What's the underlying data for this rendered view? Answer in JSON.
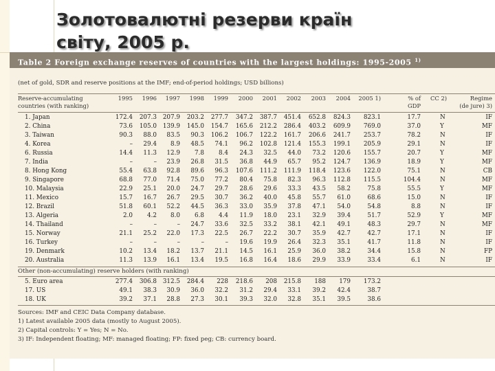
{
  "slide": {
    "title_line1": "Золотовалютні резерви країн",
    "title_line2": "світу, 2005 р."
  },
  "table": {
    "caption": "Table 2 Foreign exchange reserves of countries with the largest holdings: 1995-2005",
    "caption_note": "1)",
    "subtitle": "(net of gold, SDR and reserve positions at the IMF; end-of-period holdings; USD billions)",
    "row_header_line1": "Reserve-accumulating",
    "row_header_line2": "countries (with ranking)",
    "years": [
      "1995",
      "1996",
      "1997",
      "1998",
      "1999",
      "2000",
      "2001",
      "2002",
      "2003",
      "2004",
      "2005 1)"
    ],
    "pct_header_line1": "% of",
    "pct_header_line2": "GDP",
    "cc_header": "CC 2)",
    "regime_header_line1": "Regime",
    "regime_header_line2": "(de jure) 3)",
    "rows": [
      {
        "name": "1. Japan",
        "v": [
          "172.4",
          "207.3",
          "207.9",
          "203.2",
          "277.7",
          "347.2",
          "387.7",
          "451.4",
          "652.8",
          "824.3",
          "823.1"
        ],
        "pct": "17.7",
        "cc": "N",
        "regime": "IF"
      },
      {
        "name": "2. China",
        "v": [
          "73.6",
          "105.0",
          "139.9",
          "145.0",
          "154.7",
          "165.6",
          "212.2",
          "286.4",
          "403.2",
          "609.9",
          "769.0"
        ],
        "pct": "37.0",
        "cc": "Y",
        "regime": "MF"
      },
      {
        "name": "3. Taiwan",
        "v": [
          "90.3",
          "88.0",
          "83.5",
          "90.3",
          "106.2",
          "106.7",
          "122.2",
          "161.7",
          "206.6",
          "241.7",
          "253.7"
        ],
        "pct": "78.2",
        "cc": "N",
        "regime": "IF"
      },
      {
        "name": "4. Korea",
        "v": [
          "–",
          "29.4",
          "8.9",
          "48.5",
          "74.1",
          "96.2",
          "102.8",
          "121.4",
          "155.3",
          "199.1",
          "205.9"
        ],
        "pct": "29.1",
        "cc": "N",
        "regime": "IF"
      },
      {
        "name": "6. Russia",
        "v": [
          "14.4",
          "11.3",
          "12.9",
          "7.8",
          "8.4",
          "24.3",
          "32.5",
          "44.0",
          "73.2",
          "120.6",
          "155.7"
        ],
        "pct": "20.7",
        "cc": "Y",
        "regime": "MF"
      },
      {
        "name": "7. India",
        "v": [
          "–",
          "–",
          "23.9",
          "26.8",
          "31.5",
          "36.8",
          "44.9",
          "65.7",
          "95.2",
          "124.7",
          "136.9"
        ],
        "pct": "18.9",
        "cc": "Y",
        "regime": "MF"
      },
      {
        "name": "8. Hong Kong",
        "v": [
          "55.4",
          "63.8",
          "92.8",
          "89.6",
          "96.3",
          "107.6",
          "111.2",
          "111.9",
          "118.4",
          "123.6",
          "122.0"
        ],
        "pct": "75.1",
        "cc": "N",
        "regime": "CB"
      },
      {
        "name": "9. Singapore",
        "v": [
          "68.8",
          "77.0",
          "71.4",
          "75.0",
          "77.2",
          "80.4",
          "75.8",
          "82.3",
          "96.3",
          "112.8",
          "115.5"
        ],
        "pct": "104.4",
        "cc": "N",
        "regime": "MF"
      },
      {
        "name": "10. Malaysia",
        "v": [
          "22.9",
          "25.1",
          "20.0",
          "24.7",
          "29.7",
          "28.6",
          "29.6",
          "33.3",
          "43.5",
          "58.2",
          "75.8"
        ],
        "pct": "55.5",
        "cc": "Y",
        "regime": "MF"
      },
      {
        "name": "11. Mexico",
        "v": [
          "15.7",
          "16.7",
          "26.7",
          "29.5",
          "30.7",
          "36.2",
          "40.0",
          "45.8",
          "55.7",
          "61.0",
          "68.6"
        ],
        "pct": "15.0",
        "cc": "N",
        "regime": "IF"
      },
      {
        "name": "12. Brazil",
        "v": [
          "51.8",
          "60.1",
          "52.2",
          "44.5",
          "36.3",
          "33.0",
          "35.9",
          "37.8",
          "47.1",
          "54.0",
          "54.8"
        ],
        "pct": "8.8",
        "cc": "N",
        "regime": "IF"
      },
      {
        "name": "13. Algeria",
        "v": [
          "2.0",
          "4.2",
          "8.0",
          "6.8",
          "4.4",
          "11.9",
          "18.0",
          "23.1",
          "32.9",
          "39.4",
          "51.7"
        ],
        "pct": "52.9",
        "cc": "Y",
        "regime": "MF"
      },
      {
        "name": "14. Thailand",
        "v": [
          "–",
          "–",
          "–",
          "24.7",
          "33.6",
          "32.5",
          "33.2",
          "38.1",
          "42.1",
          "49.1",
          "48.3"
        ],
        "pct": "29.7",
        "cc": "N",
        "regime": "MF"
      },
      {
        "name": "15. Norway",
        "v": [
          "21.1",
          "25.2",
          "22.0",
          "17.3",
          "22.5",
          "26.7",
          "22.2",
          "30.7",
          "35.9",
          "42.7",
          "42.7"
        ],
        "pct": "17.1",
        "cc": "N",
        "regime": "IF"
      },
      {
        "name": "16. Turkey",
        "v": [
          "–",
          "–",
          "–",
          "–",
          "–",
          "19.6",
          "19.9",
          "26.4",
          "32.3",
          "35.1",
          "41.7"
        ],
        "pct": "11.8",
        "cc": "N",
        "regime": "IF"
      },
      {
        "name": "19. Denmark",
        "v": [
          "10.2",
          "13.4",
          "18.2",
          "13.7",
          "21.1",
          "14.5",
          "16.1",
          "25.9",
          "36.0",
          "38.2",
          "34.4"
        ],
        "pct": "15.8",
        "cc": "N",
        "regime": "FP"
      },
      {
        "name": "20. Australia",
        "v": [
          "11.3",
          "13.9",
          "16.1",
          "13.4",
          "19.5",
          "16.8",
          "16.4",
          "18.6",
          "29.9",
          "33.9",
          "33.4"
        ],
        "pct": "6.1",
        "cc": "N",
        "regime": "IF"
      }
    ],
    "group2_header": "Other (non-accumulating) reserve holders (with ranking)",
    "rows2": [
      {
        "name": "5. Euro area",
        "v": [
          "277.4",
          "306.8",
          "312.5",
          "284.4",
          "228",
          "218.6",
          "208",
          "215.8",
          "188",
          "179",
          "173.2"
        ]
      },
      {
        "name": "17. US",
        "v": [
          "49.1",
          "38.3",
          "30.9",
          "36.0",
          "32.2",
          "31.2",
          "29.4",
          "33.1",
          "39.2",
          "42.4",
          "38.7"
        ]
      },
      {
        "name": "18. UK",
        "v": [
          "39.2",
          "37.1",
          "28.8",
          "27.3",
          "30.1",
          "39.3",
          "32.0",
          "32.8",
          "35.1",
          "39.5",
          "38.6"
        ]
      }
    ],
    "footnotes": [
      "Sources: IMF and CEIC Data Company database.",
      "1) Latest available 2005 data (mostly to August 2005).",
      "2) Capital controls: Y = Yes; N = No.",
      "3) IF: Independent floating; MF: managed floating; FP: fixed peg; CB: currency board."
    ]
  }
}
